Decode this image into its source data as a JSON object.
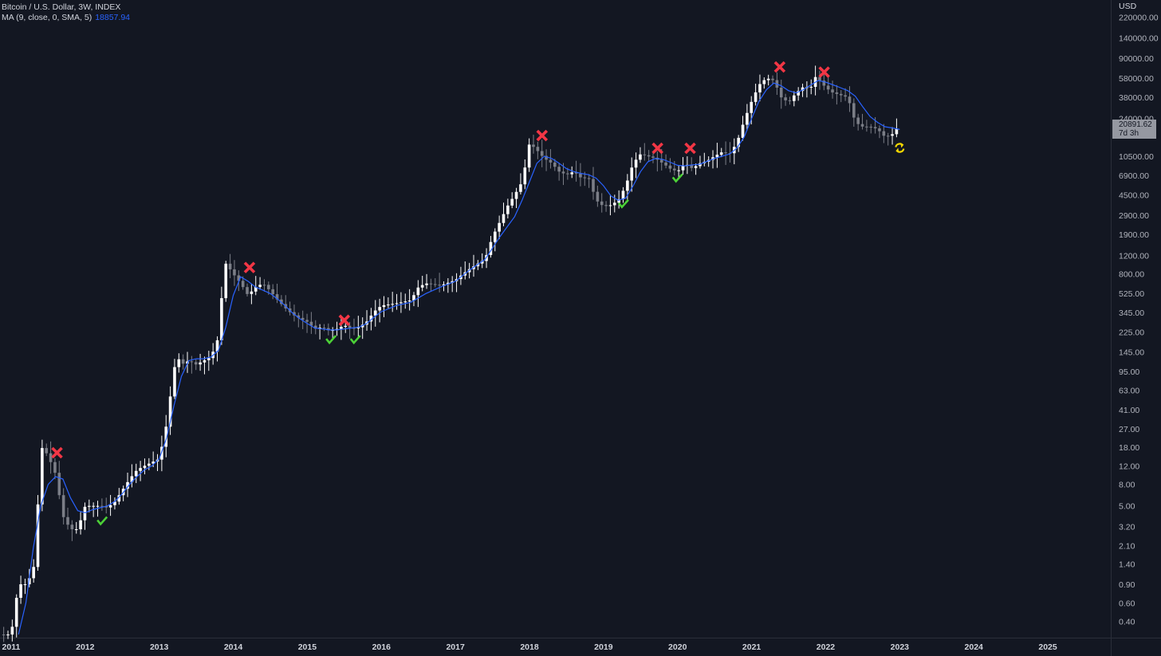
{
  "legend": {
    "symbol_line": "Bitcoin / U.S. Dollar, 3W, INDEX",
    "ma_label": "MA (9, close, 0, SMA, 5)",
    "ma_value": "18857.94"
  },
  "price_axis_unit": "USD",
  "last_price": {
    "value": "20891.62",
    "countdown": "7d 3h"
  },
  "colors": {
    "background": "#131722",
    "candle_up": "#ffffff",
    "candle_down": "#7b7e87",
    "ma_line": "#2962ff",
    "sell_marker": "#f23645",
    "buy_marker": "#4cd137",
    "reload_marker": "#f5d800"
  },
  "chart_data": {
    "type": "candlestick",
    "scale": "log",
    "title": "",
    "xlabel": "",
    "ylabel": "",
    "y_ticks": [
      "220000.00",
      "140000.00",
      "90000.00",
      "58000.00",
      "38000.00",
      "24000.00",
      "10500.00",
      "6900.00",
      "4500.00",
      "2900.00",
      "1900.00",
      "1200.00",
      "800.00",
      "525.00",
      "345.00",
      "225.00",
      "145.00",
      "95.00",
      "63.00",
      "41.00",
      "27.00",
      "18.00",
      "12.00",
      "8.00",
      "5.00",
      "3.20",
      "2.10",
      "1.40",
      "0.90",
      "0.60",
      "0.40"
    ],
    "x_ticks": [
      "2011",
      "2012",
      "2013",
      "2014",
      "2015",
      "2016",
      "2017",
      "2018",
      "2019",
      "2020",
      "2021",
      "2022",
      "2023",
      "2024",
      "2025"
    ],
    "x_range": [
      2010.85,
      2025.85
    ],
    "y_range": [
      0.28,
      320000
    ],
    "series": [
      {
        "name": "",
        "kind": "price_path",
        "x": [
          2010.85,
          2011.0,
          2011.1,
          2011.2,
          2011.3,
          2011.38,
          2011.42,
          2011.5,
          2011.6,
          2011.7,
          2011.8,
          2011.9,
          2012.0,
          2012.1,
          2012.2,
          2012.3,
          2012.4,
          2012.5,
          2012.6,
          2012.7,
          2012.8,
          2012.9,
          2013.0,
          2013.1,
          2013.2,
          2013.25,
          2013.3,
          2013.4,
          2013.5,
          2013.6,
          2013.7,
          2013.8,
          2013.85,
          2013.9,
          2013.95,
          2014.0,
          2014.1,
          2014.2,
          2014.3,
          2014.4,
          2014.5,
          2014.6,
          2014.7,
          2014.8,
          2014.9,
          2015.0,
          2015.1,
          2015.2,
          2015.3,
          2015.4,
          2015.5,
          2015.6,
          2015.7,
          2015.8,
          2015.9,
          2016.0,
          2016.2,
          2016.4,
          2016.5,
          2016.6,
          2016.8,
          2017.0,
          2017.1,
          2017.2,
          2017.3,
          2017.4,
          2017.5,
          2017.6,
          2017.7,
          2017.8,
          2017.9,
          2017.95,
          2018.0,
          2018.1,
          2018.2,
          2018.3,
          2018.4,
          2018.5,
          2018.6,
          2018.7,
          2018.8,
          2018.9,
          2019.0,
          2019.1,
          2019.2,
          2019.3,
          2019.4,
          2019.5,
          2019.6,
          2019.7,
          2019.8,
          2019.9,
          2020.0,
          2020.1,
          2020.2,
          2020.3,
          2020.4,
          2020.5,
          2020.6,
          2020.7,
          2020.8,
          2020.9,
          2021.0,
          2021.1,
          2021.2,
          2021.3,
          2021.4,
          2021.5,
          2021.6,
          2021.7,
          2021.8,
          2021.85,
          2021.9,
          2022.0,
          2022.1,
          2022.2,
          2022.3,
          2022.4,
          2022.5,
          2022.6,
          2022.7,
          2022.8,
          2022.9,
          2023.0
        ],
        "y": [
          0.3,
          0.3,
          0.9,
          0.9,
          1.2,
          8,
          18,
          15,
          10,
          4,
          3,
          3,
          5,
          5,
          5,
          4.8,
          5.5,
          7,
          9,
          11,
          12,
          13,
          14,
          30,
          100,
          130,
          110,
          120,
          110,
          120,
          130,
          200,
          550,
          1000,
          900,
          800,
          650,
          500,
          600,
          650,
          550,
          450,
          380,
          330,
          300,
          280,
          240,
          250,
          230,
          240,
          260,
          240,
          250,
          280,
          350,
          400,
          420,
          450,
          600,
          650,
          620,
          700,
          800,
          900,
          1000,
          1100,
          1800,
          2500,
          3500,
          4500,
          6000,
          9000,
          14000,
          12000,
          10000,
          9000,
          7500,
          7000,
          7500,
          6500,
          6500,
          4000,
          3500,
          3600,
          4000,
          5500,
          9000,
          11000,
          10500,
          10000,
          9000,
          8000,
          7500,
          9000,
          8000,
          9000,
          9500,
          10500,
          11500,
          11000,
          14000,
          23000,
          35000,
          50000,
          58000,
          55000,
          38000,
          34000,
          42000,
          48000,
          47000,
          60000,
          57000,
          47000,
          42000,
          40000,
          38000,
          22000,
          20000,
          20000,
          19000,
          16000,
          17000,
          20891.62
        ]
      },
      {
        "name": "MA (9, close, 0, SMA, 5)",
        "kind": "ma_path",
        "x": [
          2011.1,
          2011.2,
          2011.3,
          2011.4,
          2011.5,
          2011.6,
          2011.7,
          2011.8,
          2011.9,
          2012.0,
          2012.1,
          2012.2,
          2012.3,
          2012.4,
          2012.5,
          2012.6,
          2012.7,
          2012.8,
          2012.9,
          2013.0,
          2013.1,
          2013.2,
          2013.3,
          2013.4,
          2013.5,
          2013.6,
          2013.7,
          2013.8,
          2013.9,
          2014.0,
          2014.1,
          2014.2,
          2014.3,
          2014.4,
          2014.5,
          2014.6,
          2014.7,
          2014.8,
          2014.9,
          2015.0,
          2015.1,
          2015.2,
          2015.3,
          2015.4,
          2015.5,
          2015.6,
          2015.7,
          2015.8,
          2015.9,
          2016.0,
          2016.2,
          2016.4,
          2016.6,
          2016.8,
          2017.0,
          2017.2,
          2017.4,
          2017.6,
          2017.8,
          2017.9,
          2018.0,
          2018.1,
          2018.2,
          2018.3,
          2018.4,
          2018.5,
          2018.6,
          2018.7,
          2018.8,
          2018.9,
          2019.0,
          2019.1,
          2019.2,
          2019.3,
          2019.4,
          2019.5,
          2019.6,
          2019.7,
          2019.8,
          2019.9,
          2020.0,
          2020.1,
          2020.2,
          2020.3,
          2020.4,
          2020.5,
          2020.6,
          2020.7,
          2020.8,
          2020.9,
          2021.0,
          2021.1,
          2021.2,
          2021.3,
          2021.4,
          2021.5,
          2021.6,
          2021.7,
          2021.8,
          2021.9,
          2022.0,
          2022.1,
          2022.2,
          2022.3,
          2022.4,
          2022.5,
          2022.6,
          2022.7,
          2022.8,
          2022.9,
          2023.0
        ],
        "y": [
          0.3,
          0.6,
          2,
          5,
          8,
          9.5,
          9,
          6,
          4.5,
          4.3,
          4.6,
          4.8,
          5,
          5.5,
          6.5,
          8,
          9.5,
          11,
          12,
          14,
          22,
          45,
          85,
          120,
          125,
          125,
          130,
          150,
          250,
          500,
          750,
          680,
          600,
          560,
          520,
          460,
          400,
          340,
          300,
          270,
          245,
          240,
          235,
          235,
          240,
          245,
          250,
          270,
          310,
          350,
          400,
          430,
          520,
          600,
          680,
          880,
          1100,
          1800,
          2800,
          4000,
          6000,
          9000,
          10500,
          10000,
          9000,
          8000,
          7500,
          7200,
          7000,
          6500,
          5500,
          4400,
          4000,
          4200,
          5500,
          7500,
          9300,
          10000,
          9800,
          9200,
          8600,
          8500,
          8700,
          8800,
          9400,
          10000,
          10500,
          11000,
          12500,
          16000,
          24000,
          35000,
          45000,
          52000,
          49000,
          44000,
          42000,
          45000,
          50000,
          55000,
          53000,
          50000,
          47000,
          44000,
          39000,
          31000,
          25000,
          22000,
          20000,
          19500,
          18857.94
        ]
      },
      {
        "name": "",
        "kind": "sell_signals",
        "x": [
          2011.62,
          2014.22,
          2015.5,
          2018.17,
          2019.73,
          2020.17,
          2021.38,
          2021.98
        ],
        "y": [
          16,
          920,
          290,
          16500,
          12500,
          12500,
          74000,
          66000
        ]
      },
      {
        "name": "",
        "kind": "buy_signals",
        "x": [
          2012.23,
          2015.32,
          2015.65,
          2019.27,
          2020.0
        ],
        "y": [
          3.6,
          190,
          190,
          3700,
          6500
        ]
      },
      {
        "name": "",
        "kind": "reset_signal",
        "x": [
          2023.0
        ],
        "y": [
          12600
        ]
      }
    ]
  }
}
